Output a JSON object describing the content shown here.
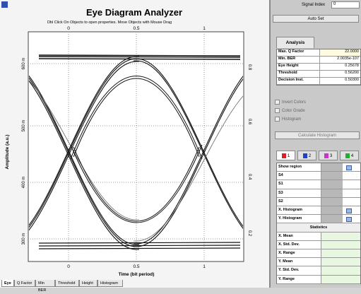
{
  "title": "Eye Diagram Analyzer",
  "subtitle": "Dbl Click On Objects to open properties.  Move Objects with Mouse Drag",
  "plot": {
    "y_label": "Amplitude (a.u.)",
    "x_label": "Time (bit period)",
    "x_ticks": [
      "0",
      "0.5",
      "1"
    ],
    "y_ticks_left": [
      "600 m",
      "500 m",
      "400 m",
      "300 m"
    ],
    "y_ticks_right": [
      "0.8",
      "0.6",
      "0.4",
      "0.2"
    ]
  },
  "tabs": [
    "Eye",
    "Q Factor",
    "Min BER",
    "Threshold",
    "Height",
    "Histogram"
  ],
  "panel": {
    "signal_index_label": "Signal Index",
    "signal_index": "0",
    "auto_set": "Auto Set",
    "analysis_tab": "Analysis",
    "analysis": [
      [
        "Max. Q Factor",
        "22.0000"
      ],
      [
        "Min. BER",
        "2.0035e-107"
      ],
      [
        "Eye Height",
        "0.25678"
      ],
      [
        "Threshold",
        "0.56200"
      ],
      [
        "Decision Inst.",
        "0.50300"
      ]
    ],
    "options": [
      "Invert Colors",
      "Color Grade",
      "Histogram"
    ],
    "calc_button": "Calculate Histogram",
    "channels": [
      "1",
      "2",
      "3",
      "4"
    ],
    "region_rows": [
      "Show region",
      "S4",
      "S1",
      "S3",
      "S2",
      "X. Histogram",
      "Y. Histogram"
    ],
    "statistics_header": "Statistics",
    "stat_rows": [
      "X. Mean",
      "X. Std. Dev.",
      "X. Range",
      "Y. Mean",
      "Y. Std. Dev.",
      "Y. Range"
    ]
  }
}
